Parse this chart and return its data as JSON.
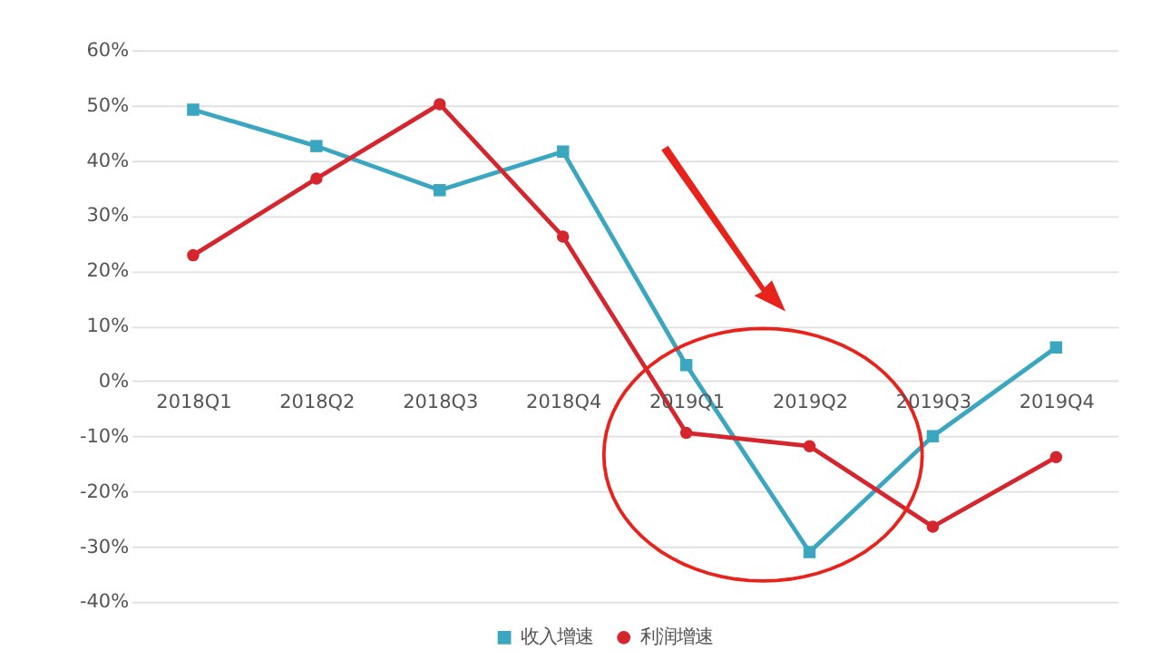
{
  "chart_data": {
    "type": "line",
    "categories": [
      "2018Q1",
      "2018Q2",
      "2018Q3",
      "2018Q4",
      "2019Q1",
      "2019Q2",
      "2019Q3",
      "2019Q4"
    ],
    "series": [
      {
        "name": "收入增速",
        "color": "#3aa6c0",
        "marker": "square",
        "values": [
          49.2,
          42.6,
          34.6,
          41.6,
          2.9,
          -31,
          -10,
          6.1
        ]
      },
      {
        "name": "利润增速",
        "color": "#d5262e",
        "marker": "circle",
        "values": [
          22.8,
          36.7,
          50.2,
          26.2,
          -9.4,
          -11.8,
          -26.4,
          -13.8
        ]
      }
    ],
    "ylim": [
      -40,
      60
    ],
    "yticks": [
      {
        "value": -40,
        "label": "-40%"
      },
      {
        "value": -30,
        "label": "-30%"
      },
      {
        "value": -20,
        "label": "-20%"
      },
      {
        "value": -10,
        "label": "-10%"
      },
      {
        "value": 0,
        "label": "0%"
      },
      {
        "value": 10,
        "label": "10%"
      },
      {
        "value": 20,
        "label": "20%"
      },
      {
        "value": 30,
        "label": "30%"
      },
      {
        "value": 40,
        "label": "40%"
      },
      {
        "value": 50,
        "label": "50%"
      },
      {
        "value": 60,
        "label": "60%"
      }
    ],
    "grid": "y",
    "legend": "bottom",
    "line_style": "solid"
  }
}
